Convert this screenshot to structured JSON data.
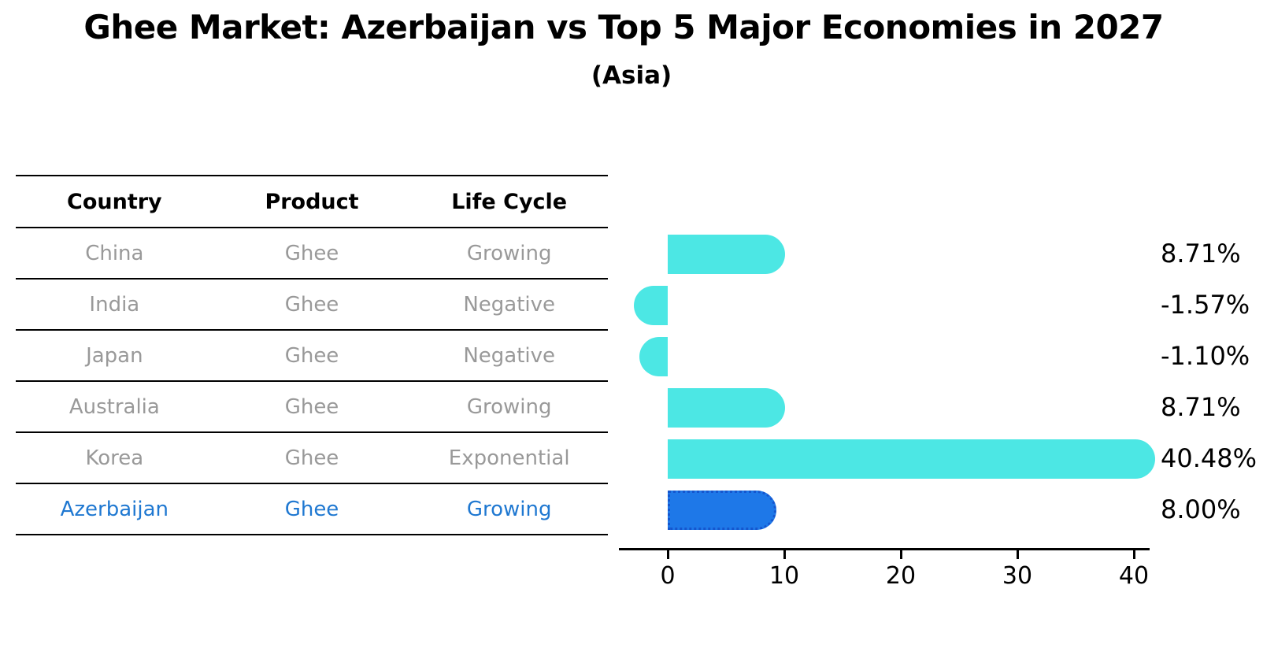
{
  "title": "Ghee Market: Azerbaijan vs Top 5 Major Economies in 2027",
  "subtitle": "(Asia)",
  "table": {
    "headers": [
      "Country",
      "Product",
      "Life Cycle"
    ],
    "rows": [
      {
        "country": "China",
        "product": "Ghee",
        "life_cycle": "Growing",
        "highlight": false
      },
      {
        "country": "India",
        "product": "Ghee",
        "life_cycle": "Negative",
        "highlight": false
      },
      {
        "country": "Japan",
        "product": "Ghee",
        "life_cycle": "Negative",
        "highlight": false
      },
      {
        "country": "Australia",
        "product": "Ghee",
        "life_cycle": "Growing",
        "highlight": false
      },
      {
        "country": "Korea",
        "product": "Ghee",
        "life_cycle": "Exponential",
        "highlight": false
      },
      {
        "country": "Azerbaijan",
        "product": "Ghee",
        "life_cycle": "Growing",
        "highlight": true
      }
    ]
  },
  "chart_data": {
    "type": "bar",
    "orientation": "horizontal",
    "title": "Ghee Market: Azerbaijan vs Top 5 Major Economies in 2027",
    "subtitle": "(Asia)",
    "categories": [
      "China",
      "India",
      "Japan",
      "Australia",
      "Korea",
      "Azerbaijan"
    ],
    "values": [
      8.71,
      -1.57,
      -1.1,
      8.71,
      40.48,
      8.0
    ],
    "value_labels": [
      "8.71%",
      "-1.57%",
      "-1.10%",
      "8.71%",
      "40.48%",
      "8.00%"
    ],
    "x_ticks": [
      0,
      10,
      20,
      30,
      40
    ],
    "xlim": [
      -4.2,
      42
    ],
    "grid": false,
    "legend": null,
    "highlight_index": 5,
    "colors": {
      "bar": "#4CE7E4",
      "highlight_bar": "#1E78E8",
      "highlight_border": "#1556CE",
      "axis": "#000000",
      "value_label": "#000000"
    }
  },
  "colors": {
    "background": "#FFFFFF",
    "table_line": "#000000",
    "header_text": "#000000",
    "row_text": "#999999",
    "highlight_text": "#1F78D1"
  }
}
